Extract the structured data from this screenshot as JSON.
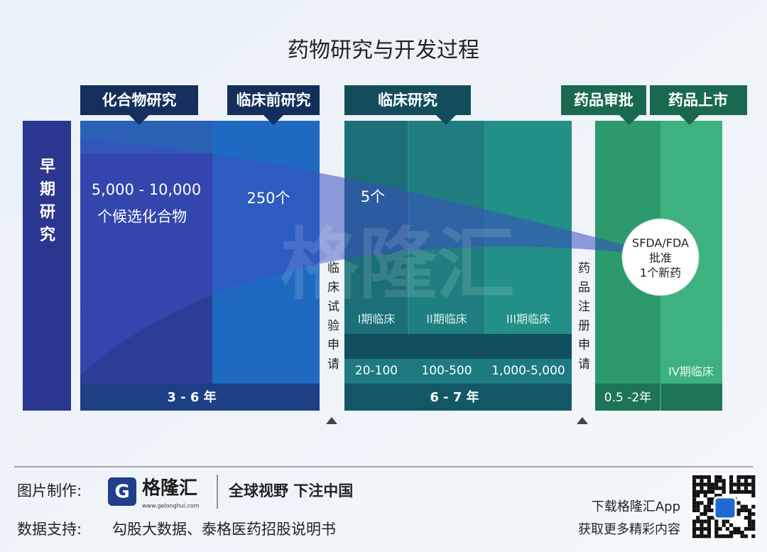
{
  "title": "药物研究与开发过程",
  "early_research": "早期研究",
  "stages": [
    "化合物研究",
    "临床前研究",
    "临床研究",
    "药品审批",
    "药品上市"
  ],
  "candidates": [
    "5,000 - 10,000",
    "个候选化合物"
  ],
  "counts": [
    "250个",
    "5个"
  ],
  "approval": [
    "SFDA/FDA",
    "批准",
    "1个新药"
  ],
  "applications": [
    "临床试验申请",
    "药品注册申请"
  ],
  "phases": [
    "I期临床",
    "II期临床",
    "III期临床",
    "IV期临床"
  ],
  "subjects": [
    "20-100",
    "100-500",
    "1,000-5,000"
  ],
  "durations": [
    "3 - 6 年",
    "6 - 7 年",
    "0.5 -2年"
  ],
  "watermark": "格隆汇",
  "footer": {
    "made_by_label": "图片制作:",
    "logo": "格隆汇",
    "logo_url": "www.gelonghui.com",
    "slogan": "全球视野 下注中国",
    "data_label": "数据支持:",
    "data_source": "勾股大数据、泰格医药招股说明书",
    "app": "下载格隆汇App",
    "app_sub": "获取更多精彩内容"
  }
}
